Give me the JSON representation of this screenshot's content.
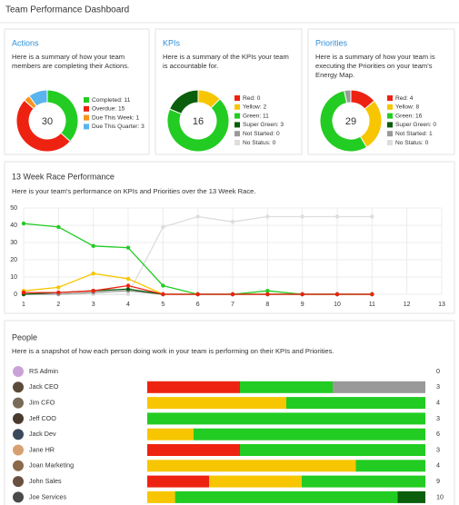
{
  "header": {
    "title": "Team Performance Dashboard"
  },
  "cards": [
    {
      "title": "Actions",
      "description": "Here is a summary of how your team members are completing their Actions.",
      "center": 30,
      "segments": [
        {
          "label": "Completed: 11",
          "value": 11,
          "color": "#22cc22"
        },
        {
          "label": "Overdue: 15",
          "value": 15,
          "color": "#ee2211"
        },
        {
          "label": "Due This Week: 1",
          "value": 1,
          "color": "#f7941d"
        },
        {
          "label": "Due This Quarter: 3",
          "value": 3,
          "color": "#5ab4ee"
        }
      ]
    },
    {
      "title": "KPIs",
      "description": "Here is a summary of the KPIs your team is accountable for.",
      "center": 16,
      "segments": [
        {
          "label": "Red: 0",
          "value": 0,
          "color": "#ee2211"
        },
        {
          "label": "Yellow: 2",
          "value": 2,
          "color": "#f7c600"
        },
        {
          "label": "Green: 11",
          "value": 11,
          "color": "#22cc22"
        },
        {
          "label": "Super Green: 3",
          "value": 3,
          "color": "#0b5e0b"
        },
        {
          "label": "Not Started: 0",
          "value": 0,
          "color": "#999999"
        },
        {
          "label": "No Status: 0",
          "value": 0,
          "color": "#dddddd"
        }
      ]
    },
    {
      "title": "Priorities",
      "description": "Here is a summary of how your team is executing the Priorities on your team's Energy Map.",
      "center": 29,
      "segments": [
        {
          "label": "Red: 4",
          "value": 4,
          "color": "#ee2211"
        },
        {
          "label": "Yellow: 8",
          "value": 8,
          "color": "#f7c600"
        },
        {
          "label": "Green: 16",
          "value": 16,
          "color": "#22cc22"
        },
        {
          "label": "Super Green: 0",
          "value": 0,
          "color": "#0b5e0b"
        },
        {
          "label": "Not Started: 1",
          "value": 1,
          "color": "#999999"
        },
        {
          "label": "No Status: 0",
          "value": 0,
          "color": "#dddddd"
        }
      ]
    }
  ],
  "chart": {
    "type": "line",
    "title": "13 Week Race Performance",
    "subtitle": "Here is your team's performance on KPIs and Priorities over the 13 Week Race.",
    "x": [
      1,
      2,
      3,
      4,
      5,
      6,
      7,
      8,
      9,
      10,
      11
    ],
    "xlim": [
      1,
      13
    ],
    "xticks": [
      1,
      2,
      3,
      4,
      5,
      6,
      7,
      8,
      9,
      10,
      11,
      12,
      13
    ],
    "ylim": [
      0,
      50
    ],
    "yticks": [
      0,
      10,
      20,
      30,
      40,
      50
    ],
    "grid": true,
    "series": [
      {
        "color": "#dddddd",
        "values": [
          0,
          0,
          0,
          0,
          39,
          45,
          42,
          45,
          45,
          45,
          45
        ]
      },
      {
        "color": "#22cc22",
        "values": [
          41,
          39,
          28,
          27,
          5,
          0,
          0,
          2,
          0,
          0,
          0
        ]
      },
      {
        "color": "#f7c600",
        "values": [
          2,
          4,
          12,
          9,
          0,
          0,
          0,
          0,
          0,
          0,
          0
        ]
      },
      {
        "color": "#999999",
        "values": [
          0,
          0,
          1,
          2,
          0,
          0,
          0,
          0,
          0,
          0,
          0
        ]
      },
      {
        "color": "#0b5e0b",
        "values": [
          0,
          1,
          2,
          3,
          0,
          0,
          0,
          0,
          0,
          0,
          0
        ]
      },
      {
        "color": "#ee2211",
        "values": [
          1,
          1,
          2,
          5,
          0,
          0,
          0,
          0,
          0,
          0,
          0
        ]
      }
    ]
  },
  "people": {
    "title": "People",
    "subtitle": "Here is a snapshot of how each person doing work in your team is performing on their KPIs and Priorities.",
    "colors": [
      "#ee2211",
      "#f7c600",
      "#22cc22",
      "#0b5e0b",
      "#999999"
    ],
    "rows": [
      {
        "name": "RS Admin",
        "values": [
          0,
          0,
          0,
          0,
          0
        ],
        "total": 0
      },
      {
        "name": "Jack CEO",
        "values": [
          1,
          0,
          1,
          0,
          1
        ],
        "total": 3
      },
      {
        "name": "Jim CFO",
        "values": [
          0,
          2,
          2,
          0,
          0
        ],
        "total": 4
      },
      {
        "name": "Jeff COO",
        "values": [
          0,
          0,
          3,
          0,
          0
        ],
        "total": 3
      },
      {
        "name": "Jack Dev",
        "values": [
          0,
          1,
          5,
          0,
          0
        ],
        "total": 6
      },
      {
        "name": "Jane HR",
        "values": [
          1,
          0,
          2,
          0,
          0
        ],
        "total": 3
      },
      {
        "name": "Joan Marketing",
        "values": [
          0,
          3,
          1,
          0,
          0
        ],
        "total": 4
      },
      {
        "name": "John Sales",
        "values": [
          2,
          3,
          4,
          0,
          0
        ],
        "total": 9
      },
      {
        "name": "Joe Services",
        "values": [
          0,
          1,
          8,
          1,
          0
        ],
        "total": 10
      }
    ]
  }
}
